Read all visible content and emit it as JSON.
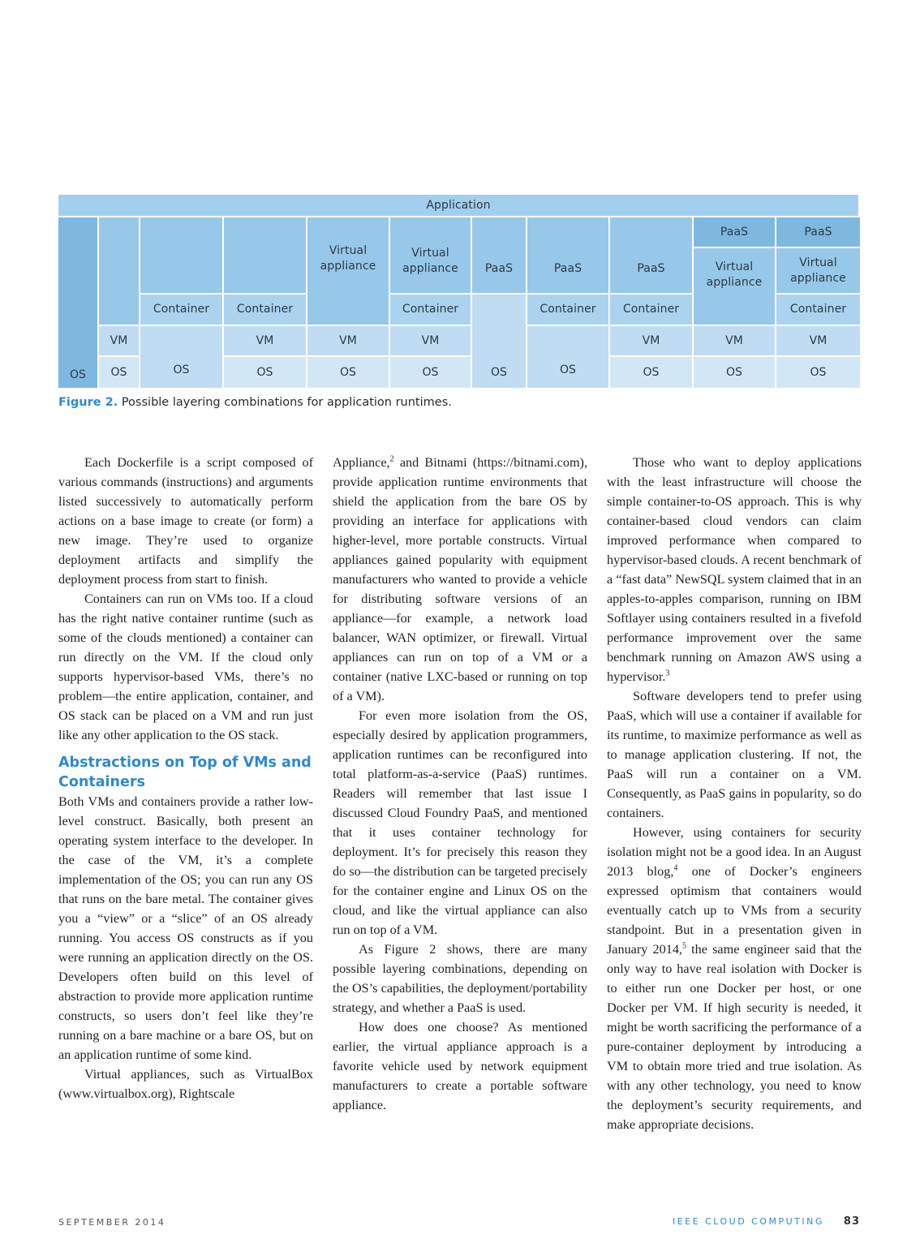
{
  "figure": {
    "top_label": "Application",
    "columns": [
      {
        "layers": [
          "OS"
        ]
      },
      {
        "layers": [
          "VM",
          "OS"
        ]
      },
      {
        "layers": [
          "Container",
          "OS"
        ]
      },
      {
        "layers": [
          "Container",
          "VM",
          "OS"
        ]
      },
      {
        "layers": [
          "Virtual appliance",
          "VM",
          "OS"
        ]
      },
      {
        "layers": [
          "Virtual appliance",
          "Container",
          "VM",
          "OS"
        ]
      },
      {
        "layers": [
          "PaaS",
          "OS"
        ]
      },
      {
        "layers": [
          "PaaS",
          "Container",
          "OS"
        ]
      },
      {
        "layers": [
          "PaaS",
          "Container",
          "VM",
          "OS"
        ]
      },
      {
        "layers": [
          "PaaS",
          "Virtual appliance",
          "VM",
          "OS"
        ]
      },
      {
        "layers": [
          "PaaS",
          "Virtual appliance",
          "Container",
          "VM",
          "OS"
        ]
      }
    ],
    "caption_label": "Figure 2.",
    "caption_text": " Possible layering combinations for application runtimes."
  },
  "article": {
    "col1": {
      "p1": "Each Dockerfile is a script composed of various commands (instructions) and arguments listed successively to automatically perform actions on a base image to create (or form) a new image. They’re used to organize deployment artifacts and simplify the deployment process from start to finish.",
      "p2": "Containers can run on VMs too. If a cloud has the right native container runtime (such as some of the clouds mentioned) a container can run directly on the VM. If the cloud only supports hypervisor-based VMs, there’s no problem—the entire application, container, and OS stack can be placed on a VM and run just like any other application to the OS stack.",
      "heading": "Abstractions on Top of VMs and Containers",
      "p3": "Both VMs and containers provide a rather low-level construct. Basically, both present an operating system interface to the developer. In the case of the VM, it’s a complete implementation of the OS; you can run any OS that runs on the bare metal. The container gives you a “view” or a “slice” of an OS already running. You access OS constructs as if you were running an application directly on the OS. Developers often build on this level of abstraction to provide more application runtime constructs, so users don’t feel like they’re running on a bare machine or a bare OS, but on an application runtime of some kind.",
      "p4": "Virtual appliances, such as VirtualBox (www.virtualbox.org), Rightscale"
    },
    "col2": {
      "p1a": "Appliance,",
      "p1_ref": "2",
      "p1b": " and Bitnami (https://bitnami.com), provide application runtime environments that shield the application from the bare OS by providing an interface for applications with higher-level, more portable constructs. Virtual appliances gained popularity with equipment manufacturers who wanted to provide a vehicle for distributing software versions of an appliance—for example, a network load balancer, WAN optimizer, or firewall. Virtual appliances can run on top of a VM or a container (native LXC-based or running on top of a VM).",
      "p2": "For even more isolation from the OS, especially desired by application programmers, application runtimes can be reconfigured into total platform-as-a-service (PaaS) runtimes. Readers will remember that last issue I discussed Cloud Foundry PaaS, and mentioned that it uses container technology for deployment. It’s for precisely this reason they do so—the distribution can be targeted precisely for the container engine and Linux OS on the cloud, and like the virtual appliance can also run on top of a VM.",
      "p3": "As Figure 2 shows, there are many possible layering combinations, depending on the OS’s capabilities, the deployment/portability strategy, and whether a PaaS is used.",
      "p4": "How does one choose? As mentioned earlier, the virtual appliance approach is a favorite vehicle used by network equipment manufacturers to create a portable software appliance."
    },
    "col3": {
      "p1a": "Those who want to deploy applications with the least infrastructure will choose the simple container-to-OS approach. This is why container-based cloud vendors can claim improved performance when compared to hypervisor-based clouds. A recent benchmark of a “fast data” NewSQL system claimed that in an apples-to-apples comparison, running on IBM Softlayer using containers resulted in a fivefold performance improvement over the same benchmark running on Amazon AWS using a hypervisor.",
      "p1_ref": "3",
      "p2": "Software developers tend to prefer using PaaS, which will use a container if available for its runtime, to maximize performance as well as to manage application clustering. If not, the PaaS will run a container on a VM. Consequently, as PaaS gains in popularity, so do containers.",
      "p3a": "However, using containers for security isolation might not be a good idea. In an August 2013 blog,",
      "p3_ref1": "4",
      "p3b": " one of Docker’s engineers expressed optimism that containers would eventually catch up to VMs from a security standpoint. But in a presentation given in January 2014,",
      "p3_ref2": "5",
      "p3c": " the same engineer said that the only way to have real isolation with Docker is to either run one Docker per host, or one Docker per VM. If high security is needed, it might be worth sacrificing the performance of a pure-container deployment by introducing a VM to obtain more tried and true isolation. As with any other technology, you need to know the deployment’s security requirements, and make appropriate decisions."
    }
  },
  "footer": {
    "date": "SEPTEMBER 2014",
    "journal": "IEEE CLOUD COMPUTING",
    "page": "83"
  }
}
